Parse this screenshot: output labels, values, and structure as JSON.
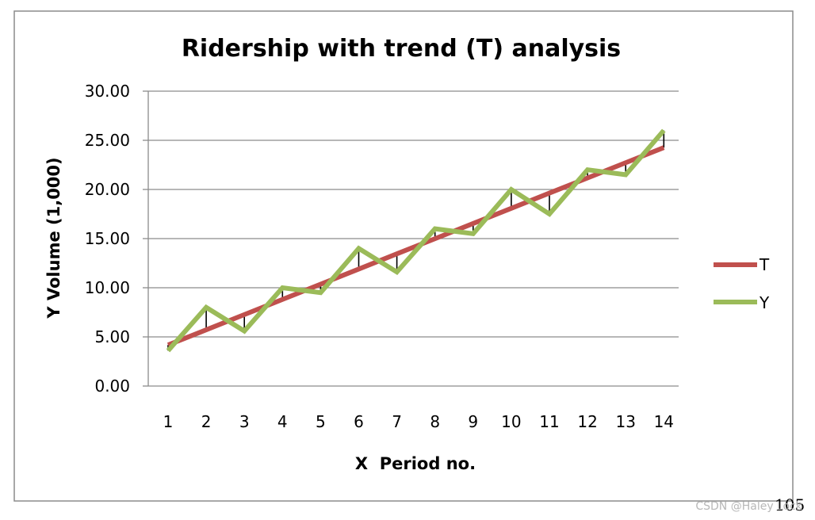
{
  "chart_data": {
    "type": "line",
    "title": "Ridership with trend (T) analysis",
    "xlabel": "X  Period no.",
    "ylabel": "Y Volume (1,000)",
    "x": [
      1,
      2,
      3,
      4,
      5,
      6,
      7,
      8,
      9,
      10,
      11,
      12,
      13,
      14
    ],
    "ylim": [
      0,
      30
    ],
    "y_ticks": [
      "0.00",
      "5.00",
      "10.00",
      "15.00",
      "20.00",
      "25.00",
      "30.00"
    ],
    "grid": "horizontal",
    "legend_position": "right",
    "series": [
      {
        "name": "T",
        "color": "#c0504d",
        "values": [
          4.18,
          5.72,
          7.27,
          8.81,
          10.36,
          11.9,
          13.45,
          14.99,
          16.54,
          18.08,
          19.63,
          21.17,
          22.72,
          24.26
        ]
      },
      {
        "name": "Y",
        "color": "#9bbb59",
        "values": [
          3.6,
          8.0,
          5.6,
          10.0,
          9.5,
          14.0,
          11.6,
          16.0,
          15.5,
          20.0,
          17.5,
          22.0,
          21.5,
          26.0
        ]
      }
    ],
    "residual_lines": true,
    "residual_color": "#000000"
  },
  "page_number": "105",
  "watermark": "CSDN @Haley Lock"
}
